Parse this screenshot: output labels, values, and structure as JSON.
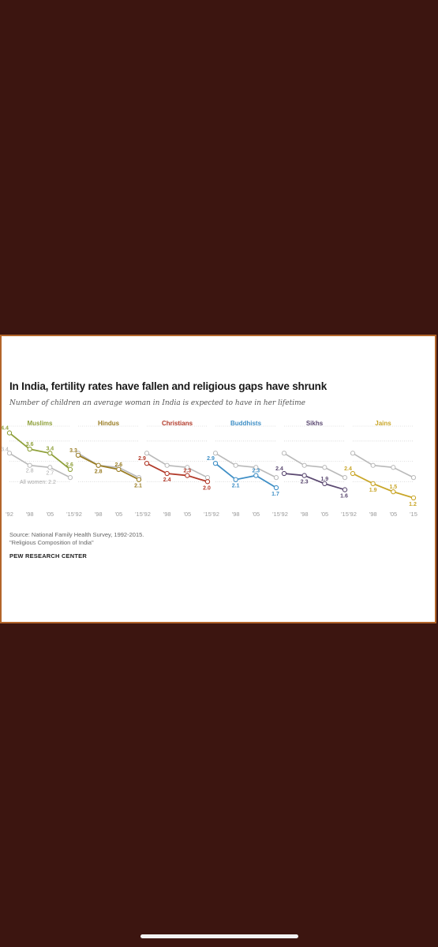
{
  "header": {
    "title": "In India, fertility rates have fallen and religious gaps have shrunk",
    "subtitle": "Number of children an average woman in India is expected to have in her lifetime"
  },
  "footer": {
    "source": "Source: National Family Health Survey, 1992-2015.",
    "report": "\"Religious Composition of India\"",
    "brand": "PEW RESEARCH CENTER"
  },
  "colors": {
    "background": "#3c1510",
    "frame": "#b3652a",
    "all_women": "#b9b9b9"
  },
  "chart_data": {
    "type": "line",
    "x": [
      "'92",
      "'98",
      "'05",
      "'15"
    ],
    "ylim": [
      1.0,
      4.5
    ],
    "grid": true,
    "reference": {
      "name": "All women",
      "label": "All women: 2.2",
      "values": [
        3.4,
        2.8,
        2.7,
        2.2
      ],
      "labels": [
        "3.4",
        "2.8",
        "2.7",
        ""
      ]
    },
    "panels": [
      {
        "name": "Muslims",
        "color": "#8fa03a",
        "values": [
          4.4,
          3.6,
          3.4,
          2.6
        ],
        "labels": [
          "4.4",
          "3.6",
          "3.4",
          "2.6"
        ]
      },
      {
        "name": "Hindus",
        "color": "#9a7d24",
        "values": [
          3.3,
          2.8,
          2.6,
          2.1
        ],
        "labels": [
          "3.3",
          "2.8",
          "2.6",
          "2.1"
        ]
      },
      {
        "name": "Christians",
        "color": "#b23a2a",
        "values": [
          2.9,
          2.4,
          2.3,
          2.0
        ],
        "labels": [
          "2.9",
          "2.4",
          "2.3",
          "2.0"
        ]
      },
      {
        "name": "Buddhists",
        "color": "#3f8fc6",
        "values": [
          2.9,
          2.1,
          2.3,
          1.7
        ],
        "labels": [
          "2.9",
          "2.1",
          "2.3",
          "1.7"
        ]
      },
      {
        "name": "Sikhs",
        "color": "#5c4a72",
        "values": [
          2.4,
          2.3,
          1.9,
          1.6
        ],
        "labels": [
          "2.4",
          "2.3",
          "1.9",
          "1.6"
        ]
      },
      {
        "name": "Jains",
        "color": "#c9a628",
        "values": [
          2.4,
          1.9,
          1.5,
          1.2
        ],
        "labels": [
          "2.4",
          "1.9",
          "1.5",
          "1.2"
        ]
      }
    ]
  }
}
